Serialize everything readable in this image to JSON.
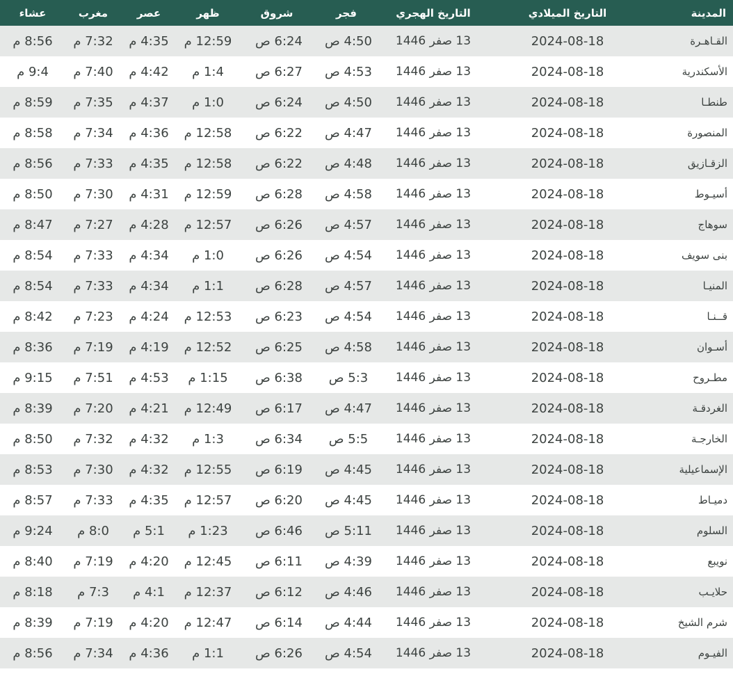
{
  "colors": {
    "header_bg": "#275d52",
    "header_text": "#ffffff",
    "stripe_bg": "#e6e8e7",
    "row_bg": "#ffffff",
    "body_text": "#3d4341"
  },
  "table": {
    "columns": [
      {
        "key": "city",
        "label": "المدينة"
      },
      {
        "key": "gregorian",
        "label": "التاريخ الميلادي"
      },
      {
        "key": "hijri",
        "label": "التاريخ الهجري"
      },
      {
        "key": "fajr",
        "label": "فجر"
      },
      {
        "key": "sunrise",
        "label": "شروق"
      },
      {
        "key": "dhuhr",
        "label": "ظهر"
      },
      {
        "key": "asr",
        "label": "عصر"
      },
      {
        "key": "maghrib",
        "label": "مغرب"
      },
      {
        "key": "isha",
        "label": "عشاء"
      }
    ],
    "rows": [
      {
        "city": "القـاهـرة",
        "gregorian": "2024-08-18",
        "hijri": "13 صفر 1446",
        "fajr": "4:50 ص",
        "sunrise": "6:24 ص",
        "dhuhr": "12:59 م",
        "asr": "4:35 م",
        "maghrib": "7:32 م",
        "isha": "8:56 م"
      },
      {
        "city": "الأسكندرية",
        "gregorian": "2024-08-18",
        "hijri": "13 صفر 1446",
        "fajr": "4:53 ص",
        "sunrise": "6:27 ص",
        "dhuhr": "1:4 م",
        "asr": "4:42 م",
        "maghrib": "7:40 م",
        "isha": "9:4 م"
      },
      {
        "city": "طنطـا",
        "gregorian": "2024-08-18",
        "hijri": "13 صفر 1446",
        "fajr": "4:50 ص",
        "sunrise": "6:24 ص",
        "dhuhr": "1:0 م",
        "asr": "4:37 م",
        "maghrib": "7:35 م",
        "isha": "8:59 م"
      },
      {
        "city": "المنصورة",
        "gregorian": "2024-08-18",
        "hijri": "13 صفر 1446",
        "fajr": "4:47 ص",
        "sunrise": "6:22 ص",
        "dhuhr": "12:58 م",
        "asr": "4:36 م",
        "maghrib": "7:34 م",
        "isha": "8:58 م"
      },
      {
        "city": "الزقـازيق",
        "gregorian": "2024-08-18",
        "hijri": "13 صفر 1446",
        "fajr": "4:48 ص",
        "sunrise": "6:22 ص",
        "dhuhr": "12:58 م",
        "asr": "4:35 م",
        "maghrib": "7:33 م",
        "isha": "8:56 م"
      },
      {
        "city": "أسيـوط",
        "gregorian": "2024-08-18",
        "hijri": "13 صفر 1446",
        "fajr": "4:58 ص",
        "sunrise": "6:28 ص",
        "dhuhr": "12:59 م",
        "asr": "4:31 م",
        "maghrib": "7:30 م",
        "isha": "8:50 م"
      },
      {
        "city": "سوهاج",
        "gregorian": "2024-08-18",
        "hijri": "13 صفر 1446",
        "fajr": "4:57 ص",
        "sunrise": "6:26 ص",
        "dhuhr": "12:57 م",
        "asr": "4:28 م",
        "maghrib": "7:27 م",
        "isha": "8:47 م"
      },
      {
        "city": "بنى سويف",
        "gregorian": "2024-08-18",
        "hijri": "13 صفر 1446",
        "fajr": "4:54 ص",
        "sunrise": "6:26 ص",
        "dhuhr": "1:0 م",
        "asr": "4:34 م",
        "maghrib": "7:33 م",
        "isha": "8:54 م"
      },
      {
        "city": "المنيـا",
        "gregorian": "2024-08-18",
        "hijri": "13 صفر 1446",
        "fajr": "4:57 ص",
        "sunrise": "6:28 ص",
        "dhuhr": "1:1 م",
        "asr": "4:34 م",
        "maghrib": "7:33 م",
        "isha": "8:54 م"
      },
      {
        "city": "قــنـا",
        "gregorian": "2024-08-18",
        "hijri": "13 صفر 1446",
        "fajr": "4:54 ص",
        "sunrise": "6:23 ص",
        "dhuhr": "12:53 م",
        "asr": "4:24 م",
        "maghrib": "7:23 م",
        "isha": "8:42 م"
      },
      {
        "city": "أسـوان",
        "gregorian": "2024-08-18",
        "hijri": "13 صفر 1446",
        "fajr": "4:58 ص",
        "sunrise": "6:25 ص",
        "dhuhr": "12:52 م",
        "asr": "4:19 م",
        "maghrib": "7:19 م",
        "isha": "8:36 م"
      },
      {
        "city": "مطـروح",
        "gregorian": "2024-08-18",
        "hijri": "13 صفر 1446",
        "fajr": "5:3 ص",
        "sunrise": "6:38 ص",
        "dhuhr": "1:15 م",
        "asr": "4:53 م",
        "maghrib": "7:51 م",
        "isha": "9:15 م"
      },
      {
        "city": "الغردقـة",
        "gregorian": "2024-08-18",
        "hijri": "13 صفر 1446",
        "fajr": "4:47 ص",
        "sunrise": "6:17 ص",
        "dhuhr": "12:49 م",
        "asr": "4:21 م",
        "maghrib": "7:20 م",
        "isha": "8:39 م"
      },
      {
        "city": "الخارجـة",
        "gregorian": "2024-08-18",
        "hijri": "13 صفر 1446",
        "fajr": "5:5 ص",
        "sunrise": "6:34 ص",
        "dhuhr": "1:3 م",
        "asr": "4:32 م",
        "maghrib": "7:32 م",
        "isha": "8:50 م"
      },
      {
        "city": "الإسماعيلية",
        "gregorian": "2024-08-18",
        "hijri": "13 صفر 1446",
        "fajr": "4:45 ص",
        "sunrise": "6:19 ص",
        "dhuhr": "12:55 م",
        "asr": "4:32 م",
        "maghrib": "7:30 م",
        "isha": "8:53 م"
      },
      {
        "city": "دميـاط",
        "gregorian": "2024-08-18",
        "hijri": "13 صفر 1446",
        "fajr": "4:45 ص",
        "sunrise": "6:20 ص",
        "dhuhr": "12:57 م",
        "asr": "4:35 م",
        "maghrib": "7:33 م",
        "isha": "8:57 م"
      },
      {
        "city": "السلوم",
        "gregorian": "2024-08-18",
        "hijri": "13 صفر 1446",
        "fajr": "5:11 ص",
        "sunrise": "6:46 ص",
        "dhuhr": "1:23 م",
        "asr": "5:1 م",
        "maghrib": "8:0 م",
        "isha": "9:24 م"
      },
      {
        "city": "نويبع",
        "gregorian": "2024-08-18",
        "hijri": "13 صفر 1446",
        "fajr": "4:39 ص",
        "sunrise": "6:11 ص",
        "dhuhr": "12:45 م",
        "asr": "4:20 م",
        "maghrib": "7:19 م",
        "isha": "8:40 م"
      },
      {
        "city": "حلايـب",
        "gregorian": "2024-08-18",
        "hijri": "13 صفر 1446",
        "fajr": "4:46 ص",
        "sunrise": "6:12 ص",
        "dhuhr": "12:37 م",
        "asr": "4:1 م",
        "maghrib": "7:3 م",
        "isha": "8:18 م"
      },
      {
        "city": "شرم الشيخ",
        "gregorian": "2024-08-18",
        "hijri": "13 صفر 1446",
        "fajr": "4:44 ص",
        "sunrise": "6:14 ص",
        "dhuhr": "12:47 م",
        "asr": "4:20 م",
        "maghrib": "7:19 م",
        "isha": "8:39 م"
      },
      {
        "city": "الفيـوم",
        "gregorian": "2024-08-18",
        "hijri": "13 صفر 1446",
        "fajr": "4:54 ص",
        "sunrise": "6:26 ص",
        "dhuhr": "1:1 م",
        "asr": "4:36 م",
        "maghrib": "7:34 م",
        "isha": "8:56 م"
      }
    ]
  }
}
